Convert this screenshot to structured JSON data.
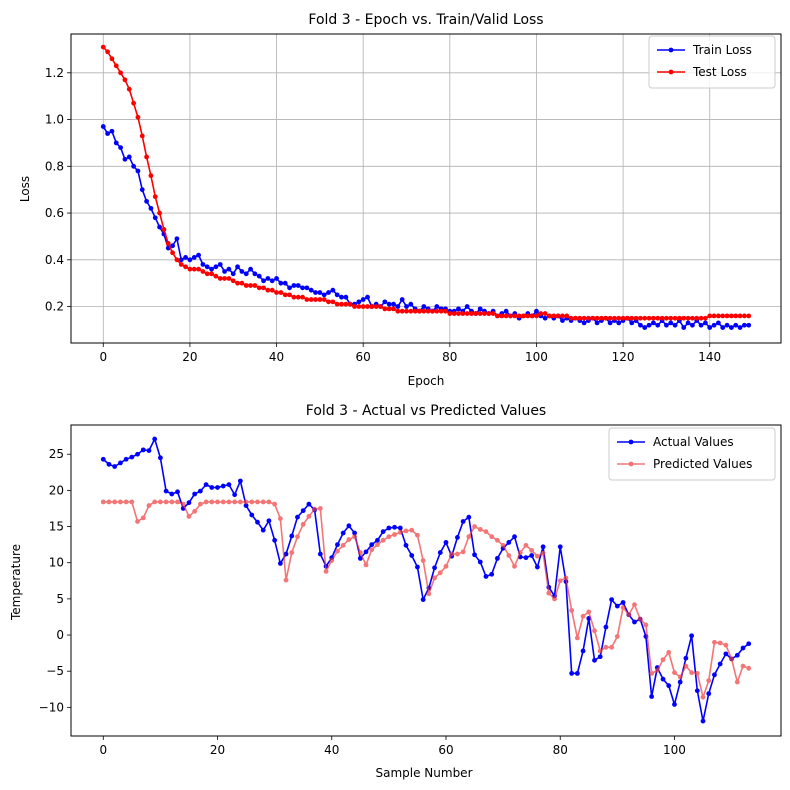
{
  "chart_data": [
    {
      "type": "line",
      "title": "Fold 3 - Epoch vs. Train/Valid Loss",
      "xlabel": "Epoch",
      "ylabel": "Loss",
      "xlim": [
        -7.45,
        156.45
      ],
      "ylim": [
        0.044,
        1.366
      ],
      "xticks": [
        0,
        20,
        40,
        60,
        80,
        100,
        120,
        140
      ],
      "yticks": [
        0.2,
        0.4,
        0.6,
        0.8,
        1.0,
        1.2
      ],
      "ytick_labels": [
        "0.2",
        "0.4",
        "0.6",
        "0.8",
        "1.0",
        "1.2"
      ],
      "grid": true,
      "legend": "upper-right",
      "series": [
        {
          "name": "Train Loss",
          "color": "#0000ff",
          "x": [
            0,
            1,
            2,
            3,
            4,
            5,
            6,
            7,
            8,
            9,
            10,
            11,
            12,
            13,
            14,
            15,
            16,
            17,
            18,
            19,
            20,
            21,
            22,
            23,
            24,
            25,
            26,
            27,
            28,
            29,
            30,
            31,
            32,
            33,
            34,
            35,
            36,
            37,
            38,
            39,
            40,
            41,
            42,
            43,
            44,
            45,
            46,
            47,
            48,
            49,
            50,
            51,
            52,
            53,
            54,
            55,
            56,
            57,
            58,
            59,
            60,
            61,
            62,
            63,
            64,
            65,
            66,
            67,
            68,
            69,
            70,
            71,
            72,
            73,
            74,
            75,
            76,
            77,
            78,
            79,
            80,
            81,
            82,
            83,
            84,
            85,
            86,
            87,
            88,
            89,
            90,
            91,
            92,
            93,
            94,
            95,
            96,
            97,
            98,
            99,
            100,
            101,
            102,
            103,
            104,
            105,
            106,
            107,
            108,
            109,
            110,
            111,
            112,
            113,
            114,
            115,
            116,
            117,
            118,
            119,
            120,
            121,
            122,
            123,
            124,
            125,
            126,
            127,
            128,
            129,
            130,
            131,
            132,
            133,
            134,
            135,
            136,
            137,
            138,
            139,
            140,
            141,
            142,
            143,
            144,
            145,
            146,
            147,
            148,
            149
          ],
          "y": [
            0.97,
            0.94,
            0.95,
            0.9,
            0.88,
            0.83,
            0.84,
            0.8,
            0.78,
            0.7,
            0.65,
            0.62,
            0.58,
            0.54,
            0.51,
            0.45,
            0.46,
            0.49,
            0.4,
            0.41,
            0.4,
            0.41,
            0.42,
            0.38,
            0.37,
            0.36,
            0.37,
            0.38,
            0.35,
            0.36,
            0.34,
            0.37,
            0.35,
            0.34,
            0.36,
            0.34,
            0.33,
            0.31,
            0.32,
            0.31,
            0.32,
            0.3,
            0.3,
            0.28,
            0.29,
            0.29,
            0.28,
            0.28,
            0.27,
            0.26,
            0.26,
            0.25,
            0.26,
            0.27,
            0.25,
            0.24,
            0.24,
            0.21,
            0.21,
            0.22,
            0.23,
            0.24,
            0.2,
            0.21,
            0.2,
            0.22,
            0.21,
            0.21,
            0.2,
            0.23,
            0.2,
            0.21,
            0.19,
            0.18,
            0.2,
            0.19,
            0.18,
            0.2,
            0.19,
            0.19,
            0.18,
            0.18,
            0.19,
            0.18,
            0.2,
            0.18,
            0.17,
            0.19,
            0.18,
            0.17,
            0.18,
            0.16,
            0.17,
            0.18,
            0.16,
            0.17,
            0.15,
            0.16,
            0.17,
            0.16,
            0.18,
            0.16,
            0.15,
            0.16,
            0.15,
            0.16,
            0.14,
            0.15,
            0.14,
            0.15,
            0.14,
            0.13,
            0.14,
            0.15,
            0.13,
            0.14,
            0.15,
            0.13,
            0.14,
            0.13,
            0.14,
            0.15,
            0.13,
            0.14,
            0.12,
            0.11,
            0.12,
            0.13,
            0.12,
            0.14,
            0.12,
            0.13,
            0.12,
            0.14,
            0.11,
            0.13,
            0.12,
            0.14,
            0.12,
            0.13,
            0.11,
            0.12,
            0.13,
            0.11,
            0.12,
            0.11,
            0.12,
            0.11,
            0.12,
            0.12
          ]
        },
        {
          "name": "Test Loss",
          "color": "#ff0000",
          "x": [
            0,
            1,
            2,
            3,
            4,
            5,
            6,
            7,
            8,
            9,
            10,
            11,
            12,
            13,
            14,
            15,
            16,
            17,
            18,
            19,
            20,
            21,
            22,
            23,
            24,
            25,
            26,
            27,
            28,
            29,
            30,
            31,
            32,
            33,
            34,
            35,
            36,
            37,
            38,
            39,
            40,
            41,
            42,
            43,
            44,
            45,
            46,
            47,
            48,
            49,
            50,
            51,
            52,
            53,
            54,
            55,
            56,
            57,
            58,
            59,
            60,
            61,
            62,
            63,
            64,
            65,
            66,
            67,
            68,
            69,
            70,
            71,
            72,
            73,
            74,
            75,
            76,
            77,
            78,
            79,
            80,
            81,
            82,
            83,
            84,
            85,
            86,
            87,
            88,
            89,
            90,
            91,
            92,
            93,
            94,
            95,
            96,
            97,
            98,
            99,
            100,
            101,
            102,
            103,
            104,
            105,
            106,
            107,
            108,
            109,
            110,
            111,
            112,
            113,
            114,
            115,
            116,
            117,
            118,
            119,
            120,
            121,
            122,
            123,
            124,
            125,
            126,
            127,
            128,
            129,
            130,
            131,
            132,
            133,
            134,
            135,
            136,
            137,
            138,
            139,
            140,
            141,
            142,
            143,
            144,
            145,
            146,
            147,
            148,
            149
          ],
          "y": [
            1.31,
            1.29,
            1.26,
            1.23,
            1.2,
            1.17,
            1.13,
            1.07,
            1.01,
            0.93,
            0.84,
            0.76,
            0.67,
            0.6,
            0.53,
            0.47,
            0.43,
            0.4,
            0.38,
            0.37,
            0.36,
            0.36,
            0.36,
            0.35,
            0.34,
            0.34,
            0.33,
            0.32,
            0.32,
            0.32,
            0.31,
            0.3,
            0.3,
            0.29,
            0.29,
            0.29,
            0.28,
            0.28,
            0.27,
            0.27,
            0.26,
            0.26,
            0.25,
            0.25,
            0.24,
            0.24,
            0.24,
            0.23,
            0.23,
            0.23,
            0.23,
            0.23,
            0.22,
            0.22,
            0.21,
            0.21,
            0.21,
            0.21,
            0.2,
            0.2,
            0.2,
            0.2,
            0.2,
            0.2,
            0.2,
            0.19,
            0.19,
            0.19,
            0.18,
            0.18,
            0.18,
            0.18,
            0.18,
            0.18,
            0.18,
            0.18,
            0.18,
            0.18,
            0.18,
            0.18,
            0.17,
            0.17,
            0.17,
            0.17,
            0.17,
            0.17,
            0.17,
            0.17,
            0.17,
            0.17,
            0.17,
            0.16,
            0.16,
            0.16,
            0.16,
            0.16,
            0.16,
            0.16,
            0.16,
            0.16,
            0.16,
            0.17,
            0.17,
            0.16,
            0.16,
            0.16,
            0.16,
            0.16,
            0.15,
            0.15,
            0.15,
            0.15,
            0.15,
            0.15,
            0.15,
            0.15,
            0.15,
            0.15,
            0.15,
            0.15,
            0.15,
            0.15,
            0.15,
            0.15,
            0.15,
            0.15,
            0.15,
            0.15,
            0.15,
            0.15,
            0.15,
            0.15,
            0.15,
            0.15,
            0.15,
            0.15,
            0.15,
            0.15,
            0.15,
            0.15,
            0.16,
            0.16,
            0.16,
            0.16,
            0.16,
            0.16,
            0.16,
            0.16,
            0.16,
            0.16
          ]
        }
      ]
    },
    {
      "type": "line",
      "title": "Fold 3 - Actual vs Predicted Values",
      "xlabel": "Sample Number",
      "ylabel": "Temperature",
      "xlim": [
        -5.65,
        118.65
      ],
      "ylim": [
        -13.96,
        29.04
      ],
      "xticks": [
        0,
        20,
        40,
        60,
        80,
        100
      ],
      "yticks": [
        -10,
        -5,
        0,
        5,
        10,
        15,
        20,
        25
      ],
      "grid": false,
      "legend": "upper-right",
      "series": [
        {
          "name": "Actual Values",
          "color": "#0000ff",
          "x": [
            0,
            1,
            2,
            3,
            4,
            5,
            6,
            7,
            8,
            9,
            10,
            11,
            12,
            13,
            14,
            15,
            16,
            17,
            18,
            19,
            20,
            21,
            22,
            23,
            24,
            25,
            26,
            27,
            28,
            29,
            30,
            31,
            32,
            33,
            34,
            35,
            36,
            37,
            38,
            39,
            40,
            41,
            42,
            43,
            44,
            45,
            46,
            47,
            48,
            49,
            50,
            51,
            52,
            53,
            54,
            55,
            56,
            57,
            58,
            59,
            60,
            61,
            62,
            63,
            64,
            65,
            66,
            67,
            68,
            69,
            70,
            71,
            72,
            73,
            74,
            75,
            76,
            77,
            78,
            79,
            80,
            81,
            82,
            83,
            84,
            85,
            86,
            87,
            88,
            89,
            90,
            91,
            92,
            93,
            94,
            95,
            96,
            97,
            98,
            99,
            100,
            101,
            102,
            103,
            104,
            105,
            106,
            107,
            108,
            109,
            110,
            111,
            112,
            113
          ],
          "y": [
            24.3,
            23.6,
            23.3,
            23.8,
            24.3,
            24.6,
            25.0,
            25.6,
            25.5,
            27.1,
            24.5,
            19.9,
            19.5,
            19.8,
            17.5,
            18.3,
            19.5,
            19.9,
            20.8,
            20.4,
            20.4,
            20.6,
            20.8,
            19.4,
            21.3,
            17.9,
            16.6,
            15.6,
            14.5,
            15.8,
            13.1,
            9.9,
            11.2,
            13.7,
            16.3,
            17.2,
            18.1,
            17.3,
            11.2,
            9.5,
            10.7,
            12.5,
            14.1,
            15.1,
            14.1,
            10.6,
            11.5,
            12.5,
            13.1,
            14.3,
            14.8,
            14.9,
            14.8,
            12.4,
            11.0,
            9.4,
            4.9,
            6.5,
            9.3,
            11.4,
            12.8,
            10.9,
            13.5,
            15.7,
            16.3,
            11.1,
            10.1,
            8.1,
            8.4,
            10.6,
            12.0,
            12.8,
            13.6,
            10.8,
            10.7,
            11.0,
            9.4,
            12.2,
            6.6,
            5.4,
            12.2,
            7.4,
            -5.3,
            -5.3,
            -2.2,
            2.3,
            -3.5,
            -3.0,
            1.1,
            4.9,
            4.0,
            4.5,
            2.8,
            1.8,
            2.2,
            -0.2,
            -8.5,
            -4.5,
            -6.1,
            -7.0,
            -9.6,
            -6.5,
            -3.2,
            -0.1,
            -7.7,
            -11.9,
            -8.1,
            -5.5,
            -4.0,
            -2.6,
            -3.3,
            -2.8,
            -1.8,
            -1.2
          ]
        },
        {
          "name": "Predicted Values",
          "color": "#f03c3c",
          "x": [
            0,
            1,
            2,
            3,
            4,
            5,
            6,
            7,
            8,
            9,
            10,
            11,
            12,
            13,
            14,
            15,
            16,
            17,
            18,
            19,
            20,
            21,
            22,
            23,
            24,
            25,
            26,
            27,
            28,
            29,
            30,
            31,
            32,
            33,
            34,
            35,
            36,
            37,
            38,
            39,
            40,
            41,
            42,
            43,
            44,
            45,
            46,
            47,
            48,
            49,
            50,
            51,
            52,
            53,
            54,
            55,
            56,
            57,
            58,
            59,
            60,
            61,
            62,
            63,
            64,
            65,
            66,
            67,
            68,
            69,
            70,
            71,
            72,
            73,
            74,
            75,
            76,
            77,
            78,
            79,
            80,
            81,
            82,
            83,
            84,
            85,
            86,
            87,
            88,
            89,
            90,
            91,
            92,
            93,
            94,
            95,
            96,
            97,
            98,
            99,
            100,
            101,
            102,
            103,
            104,
            105,
            106,
            107,
            108,
            109,
            110,
            111,
            112,
            113
          ],
          "y": [
            18.4,
            18.4,
            18.4,
            18.4,
            18.4,
            18.4,
            15.7,
            16.2,
            17.9,
            18.4,
            18.4,
            18.4,
            18.4,
            18.4,
            18.1,
            16.4,
            17.1,
            18.1,
            18.4,
            18.4,
            18.4,
            18.4,
            18.4,
            18.4,
            18.4,
            18.4,
            18.4,
            18.4,
            18.4,
            18.4,
            18.1,
            16.1,
            7.6,
            11.4,
            13.6,
            15.3,
            16.4,
            17.4,
            17.5,
            8.8,
            10.3,
            11.6,
            12.4,
            13.2,
            13.6,
            11.4,
            9.7,
            11.8,
            12.5,
            13.1,
            13.6,
            13.9,
            14.2,
            14.4,
            14.5,
            13.8,
            10.3,
            5.7,
            7.9,
            8.6,
            9.5,
            11.2,
            11.2,
            11.5,
            13.6,
            15.0,
            14.6,
            14.3,
            13.6,
            13.1,
            12.4,
            11.0,
            9.5,
            11.4,
            12.4,
            11.7,
            10.9,
            11.3,
            5.8,
            5.0,
            7.5,
            7.9,
            3.4,
            -0.4,
            2.6,
            3.2,
            0.6,
            -2.2,
            -1.7,
            -1.7,
            -0.2,
            3.8,
            2.8,
            4.2,
            2.2,
            1.4,
            -5.3,
            -4.9,
            -3.4,
            -2.4,
            -5.2,
            -5.8,
            -4.3,
            -5.2,
            -5.3,
            -8.6,
            -6.3,
            -1.0,
            -1.1,
            -1.4,
            -3.3,
            -6.5,
            -4.3,
            -4.6
          ]
        }
      ]
    }
  ]
}
